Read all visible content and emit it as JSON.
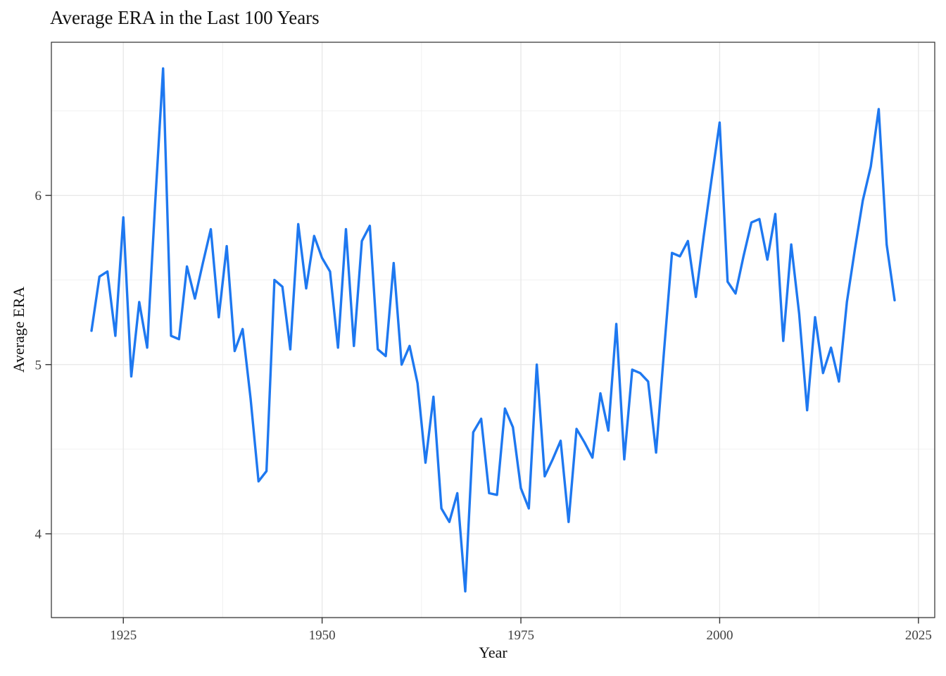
{
  "page_title": "Average ERA in the Last 100 Years",
  "chart_data": {
    "type": "line",
    "title": "Average ERA in the Last 100 Years",
    "xlabel": "Year",
    "ylabel": "Average ERA",
    "series_name": "Average ERA",
    "x": [
      1921,
      1922,
      1923,
      1924,
      1925,
      1926,
      1927,
      1928,
      1929,
      1930,
      1931,
      1932,
      1933,
      1934,
      1935,
      1936,
      1937,
      1938,
      1939,
      1940,
      1941,
      1942,
      1943,
      1944,
      1945,
      1946,
      1947,
      1948,
      1949,
      1950,
      1951,
      1952,
      1953,
      1954,
      1955,
      1956,
      1957,
      1958,
      1959,
      1960,
      1961,
      1962,
      1963,
      1964,
      1965,
      1966,
      1967,
      1968,
      1969,
      1970,
      1971,
      1972,
      1973,
      1974,
      1975,
      1976,
      1977,
      1978,
      1979,
      1980,
      1981,
      1982,
      1983,
      1984,
      1985,
      1986,
      1987,
      1988,
      1989,
      1990,
      1991,
      1992,
      1993,
      1994,
      1995,
      1996,
      1997,
      1998,
      1999,
      2000,
      2001,
      2002,
      2003,
      2004,
      2005,
      2006,
      2007,
      2008,
      2009,
      2010,
      2011,
      2012,
      2013,
      2014,
      2015,
      2016,
      2017,
      2018,
      2019,
      2020,
      2021,
      2022
    ],
    "values": [
      5.2,
      5.52,
      5.55,
      5.17,
      5.87,
      4.93,
      5.37,
      5.1,
      5.95,
      6.75,
      5.17,
      5.15,
      5.58,
      5.39,
      5.6,
      5.8,
      5.28,
      5.7,
      5.08,
      5.21,
      4.8,
      4.31,
      4.37,
      5.5,
      5.46,
      5.09,
      5.83,
      5.45,
      5.76,
      5.63,
      5.55,
      5.1,
      5.8,
      5.11,
      5.73,
      5.82,
      5.09,
      5.05,
      5.6,
      5.0,
      5.11,
      4.89,
      4.42,
      4.81,
      4.15,
      4.07,
      4.24,
      3.66,
      4.6,
      4.68,
      4.24,
      4.23,
      4.74,
      4.63,
      4.27,
      4.15,
      5.0,
      4.34,
      4.44,
      4.55,
      4.07,
      4.62,
      4.54,
      4.45,
      4.83,
      4.61,
      5.24,
      4.44,
      4.97,
      4.95,
      4.9,
      4.48,
      5.08,
      5.66,
      5.64,
      5.73,
      5.4,
      5.76,
      6.1,
      6.43,
      5.49,
      5.42,
      5.64,
      5.84,
      5.86,
      5.62,
      5.89,
      5.14,
      5.71,
      5.3,
      4.73,
      5.28,
      4.95,
      5.1,
      4.9,
      5.37,
      5.68,
      5.97,
      6.17,
      6.51,
      5.71,
      5.38
    ],
    "xlim": [
      1915.95,
      2027.05
    ],
    "ylim": [
      3.505,
      6.905
    ],
    "x_ticks": [
      1925,
      1950,
      1975,
      2000,
      2025
    ],
    "y_ticks": [
      4,
      5,
      6
    ],
    "x_minor_gridlines": [
      1937.5,
      1962.5,
      1987.5,
      2012.5
    ],
    "y_minor_gridlines": [
      3.5,
      4.5,
      5.5,
      6.5
    ],
    "grid": true,
    "legend_position": "none",
    "colors": {
      "line": "#1E78F0",
      "panel_background": "#ffffff",
      "major_gridline": "#e7e7e7",
      "minor_gridline": "#f0f0f0",
      "panel_border": "#2b2b2b",
      "tick_mark": "#333333",
      "tick_label": "#404040",
      "title_text": "#111111"
    }
  }
}
